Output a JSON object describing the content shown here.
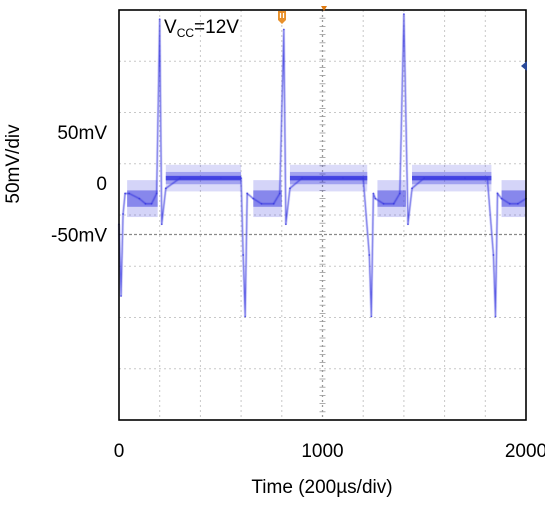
{
  "chart_data": {
    "type": "line",
    "title": "",
    "annotation": {
      "main": "V",
      "sub": "CC",
      "suffix": "=12V"
    },
    "xlabel": "Time (200µs/div)",
    "ylabel": "50mV/div",
    "x_ticks": [
      {
        "value": 0,
        "label": "0"
      },
      {
        "value": 1000,
        "label": "1000"
      },
      {
        "value": 2000,
        "label": "2000"
      }
    ],
    "y_ticks": [
      {
        "value": 50,
        "label": "50mV"
      },
      {
        "value": 0,
        "label": "0"
      },
      {
        "value": -50,
        "label": "-50mV"
      }
    ],
    "xlim": [
      0,
      2000
    ],
    "ylim": [
      -231,
      169
    ],
    "grid": true,
    "grid_x_divisions": 10,
    "grid_y_divisions": 8,
    "trace_color": "#3a3ae0",
    "marker_color": "#e07a10",
    "series": [
      {
        "name": "",
        "x": [
          0,
          10,
          20,
          30,
          50,
          100,
          130,
          160,
          185,
          200,
          210,
          230,
          300,
          500,
          600,
          610,
          620,
          630,
          660,
          700,
          760,
          790,
          810,
          820,
          840,
          900,
          1100,
          1200,
          1230,
          1240,
          1250,
          1260,
          1300,
          1350,
          1380,
          1400,
          1420,
          1440,
          1500,
          1700,
          1810,
          1840,
          1850,
          1860,
          1880,
          1920,
          1960,
          2000
        ],
        "y": [
          -40,
          -110,
          -30,
          -10,
          -10,
          -15,
          -20,
          -20,
          -10,
          160,
          -40,
          -5,
          5,
          5,
          5,
          -70,
          -130,
          -10,
          -15,
          -20,
          -20,
          -10,
          150,
          -40,
          -5,
          5,
          5,
          5,
          -70,
          -130,
          -10,
          -15,
          -20,
          -20,
          -10,
          165,
          -40,
          -5,
          5,
          5,
          5,
          -70,
          -130,
          -10,
          -15,
          -20,
          -20,
          -15
        ]
      }
    ]
  }
}
